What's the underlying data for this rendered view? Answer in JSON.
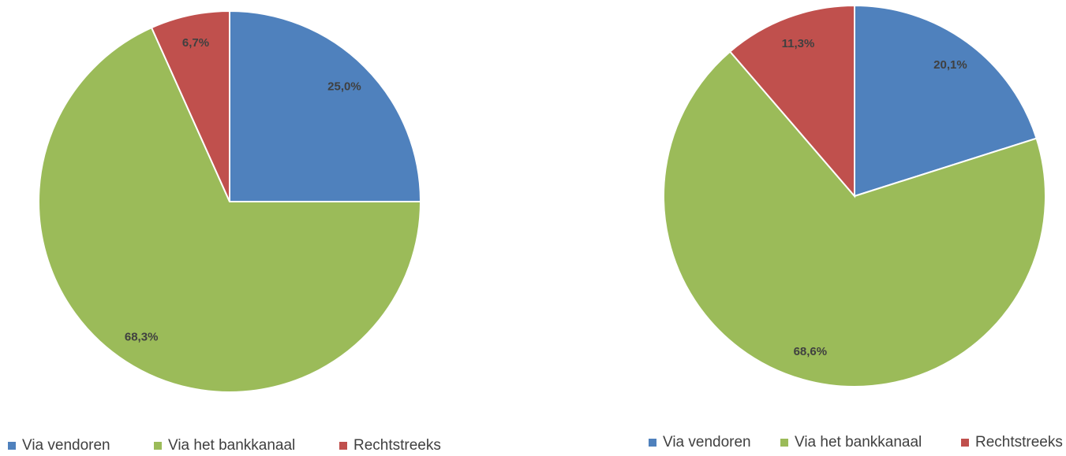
{
  "chart_data": [
    {
      "type": "pie",
      "categories": [
        "Via vendoren",
        "Via het bankkanaal",
        "Rechtstreeks"
      ],
      "values": [
        25.0,
        68.3,
        6.7
      ],
      "value_labels": [
        "25,0%",
        "68,3%",
        "6,7%"
      ],
      "colors": [
        "#4f81bd",
        "#9bbb59",
        "#c0504d"
      ]
    },
    {
      "type": "pie",
      "categories": [
        "Via vendoren",
        "Via het bankkanaal",
        "Rechtstreeks"
      ],
      "values": [
        20.1,
        68.6,
        11.3
      ],
      "value_labels": [
        "20,1%",
        "68,6%",
        "11,3%"
      ],
      "colors": [
        "#4f81bd",
        "#9bbb59",
        "#c0504d"
      ]
    }
  ]
}
